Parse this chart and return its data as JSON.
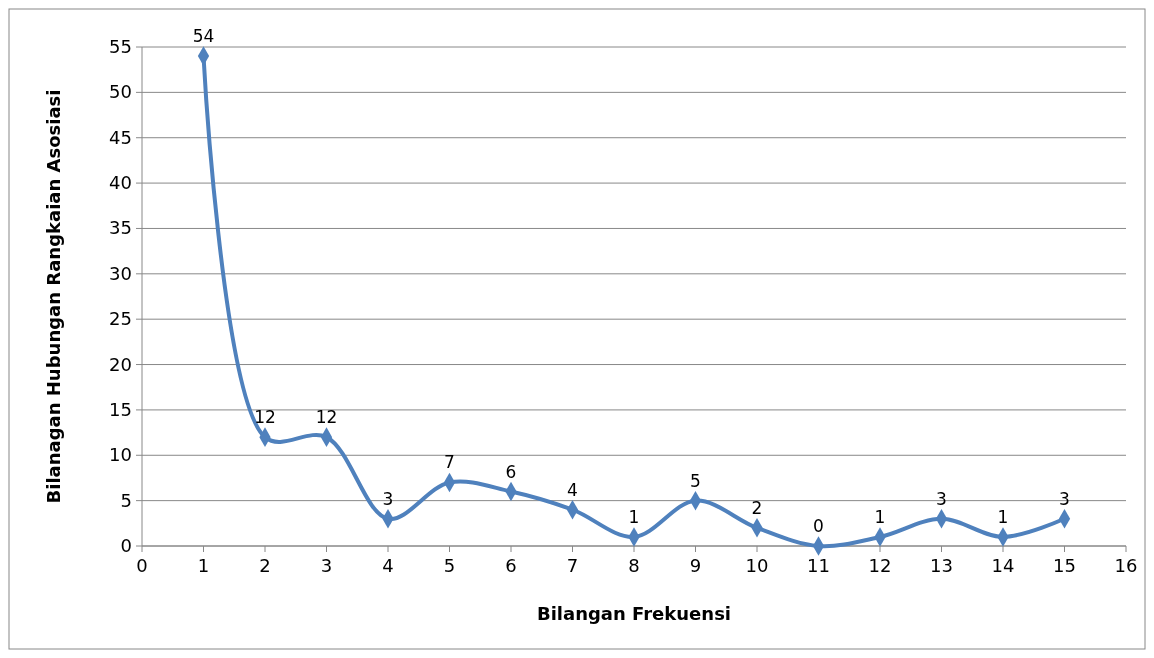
{
  "chart_data": {
    "type": "line",
    "xlabel": "Bilangan Frekuensi",
    "ylabel": "Bilanagan Hubungan Rangkaian Asosiasi",
    "x": [
      1,
      2,
      3,
      4,
      5,
      6,
      7,
      8,
      9,
      10,
      11,
      12,
      13,
      14,
      15
    ],
    "series": [
      {
        "color": "#4f81bd",
        "values": [
          54,
          12,
          12,
          3,
          7,
          6,
          4,
          1,
          5,
          2,
          0,
          1,
          3,
          1,
          3
        ]
      }
    ],
    "xlim": [
      0,
      16
    ],
    "xticks": [
      0,
      1,
      2,
      3,
      4,
      5,
      6,
      7,
      8,
      9,
      10,
      11,
      12,
      13,
      14,
      15,
      16
    ],
    "ylim": [
      0,
      55
    ],
    "yticks": [
      0,
      5,
      10,
      15,
      20,
      25,
      30,
      35,
      40,
      45,
      50,
      55
    ],
    "grid": "y",
    "marker": "diamond",
    "line_style": "solid",
    "data_labels": true
  }
}
